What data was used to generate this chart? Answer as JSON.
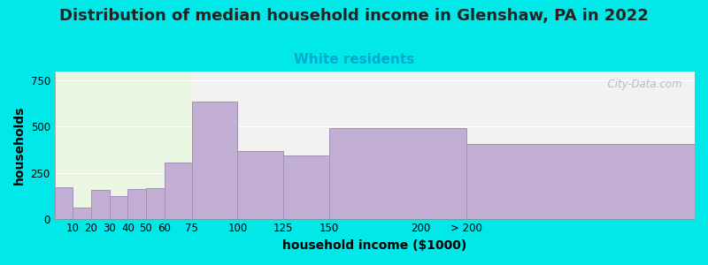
{
  "title": "Distribution of median household income in Glenshaw, PA in 2022",
  "subtitle": "White residents",
  "xlabel": "household income ($1000)",
  "ylabel": "households",
  "background_color": "#00e8e8",
  "plot_bg_left": "#eaf5e2",
  "plot_bg_right": "#f2f2f2",
  "bar_color": "#c4afd4",
  "bar_edge_color": "#a090b8",
  "bin_left": [
    0,
    10,
    20,
    30,
    40,
    50,
    60,
    75,
    100,
    125,
    150,
    225
  ],
  "bin_right": [
    10,
    20,
    30,
    40,
    50,
    60,
    75,
    100,
    125,
    150,
    225,
    350
  ],
  "values": [
    170,
    60,
    155,
    125,
    160,
    165,
    305,
    635,
    370,
    345,
    495,
    405
  ],
  "xtick_positions": [
    10,
    20,
    30,
    40,
    50,
    60,
    75,
    100,
    125,
    150,
    200,
    225
  ],
  "xtick_labels": [
    "10",
    "20",
    "30",
    "40",
    "50",
    "60",
    "75",
    "100",
    "125",
    "150",
    "200",
    "> 200"
  ],
  "ylim": [
    0,
    800
  ],
  "xlim": [
    0,
    350
  ],
  "yticks": [
    0,
    250,
    500,
    750
  ],
  "title_fontsize": 13,
  "subtitle_fontsize": 11,
  "subtitle_color": "#00aacc",
  "axis_label_fontsize": 10,
  "tick_fontsize": 8.5,
  "watermark": "  City-Data.com",
  "left_bg_end": 75,
  "right_bg_start": 75
}
